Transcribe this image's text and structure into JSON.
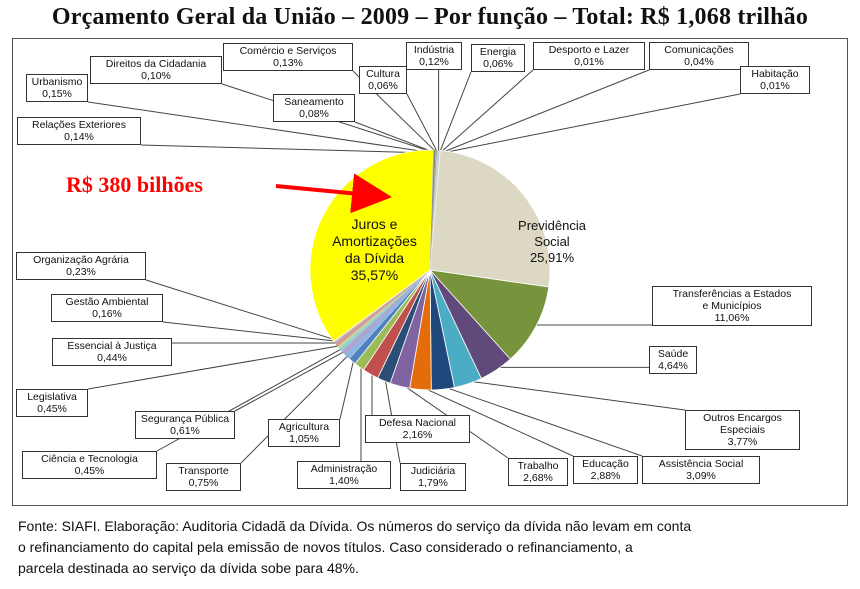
{
  "chart_data": {
    "type": "pie",
    "title": "Orçamento Geral da União – 2009 – Por função – Total: R$ 1,068 trilhão",
    "slices": [
      {
        "label": "Previdência Social",
        "label_lines": [
          "Previdência",
          "Social"
        ],
        "value_text": "25,91%",
        "value": 25.91,
        "color": "#ddd8c4"
      },
      {
        "label": "Transferências a Estados e Municípios",
        "label_lines": [
          "Transferências a Estados",
          "e Municípios"
        ],
        "value_text": "11,06%",
        "value": 11.06,
        "color": "#77933c"
      },
      {
        "label": "Saúde",
        "label_lines": [
          "Saúde"
        ],
        "value_text": "4,64%",
        "value": 4.64,
        "color": "#604a7b"
      },
      {
        "label": "Outros Encargos Especiais",
        "label_lines": [
          "Outros Encargos",
          "Especiais"
        ],
        "value_text": "3,77%",
        "value": 3.77,
        "color": "#4bacc6"
      },
      {
        "label": "Assistência Social",
        "label_lines": [
          "Assistência Social"
        ],
        "value_text": "3,09%",
        "value": 3.09,
        "color": "#1f497d"
      },
      {
        "label": "Educação",
        "label_lines": [
          "Educação"
        ],
        "value_text": "2,88%",
        "value": 2.88,
        "color": "#e46c0a"
      },
      {
        "label": "Trabalho",
        "label_lines": [
          "Trabalho"
        ],
        "value_text": "2,68%",
        "value": 2.68,
        "color": "#8064a2"
      },
      {
        "label": "Judiciária",
        "label_lines": [
          "Judiciária"
        ],
        "value_text": "1,79%",
        "value": 1.79,
        "color": "#2c4d75"
      },
      {
        "label": "Defesa Nacional",
        "label_lines": [
          "Defesa Nacional"
        ],
        "value_text": "2,16%",
        "value": 2.16,
        "color": "#c0504d"
      },
      {
        "label": "Administração",
        "label_lines": [
          "Administração"
        ],
        "value_text": "1,40%",
        "value": 1.4,
        "color": "#9bbb59"
      },
      {
        "label": "Agricultura",
        "label_lines": [
          "Agricultura"
        ],
        "value_text": "1,05%",
        "value": 1.05,
        "color": "#4f81bd"
      },
      {
        "label": "Transporte",
        "label_lines": [
          "Transporte"
        ],
        "value_text": "0,75%",
        "value": 0.75,
        "color": "#8eb4e3"
      },
      {
        "label": "Segurança Pública",
        "label_lines": [
          "Segurança Pública"
        ],
        "value_text": "0,61%",
        "value": 0.61,
        "color": "#b3a2c7"
      },
      {
        "label": "Ciência e Tecnologia",
        "label_lines": [
          "Ciência e Tecnologia"
        ],
        "value_text": "0,45%",
        "value": 0.45,
        "color": "#93cddd"
      },
      {
        "label": "Legislativa",
        "label_lines": [
          "Legislativa"
        ],
        "value_text": "0,45%",
        "value": 0.45,
        "color": "#c3d69b"
      },
      {
        "label": "Essencial à Justiça",
        "label_lines": [
          "Essencial à Justiça"
        ],
        "value_text": "0,44%",
        "value": 0.44,
        "color": "#d99694"
      },
      {
        "label": "Gestão Ambiental",
        "label_lines": [
          "Gestão Ambiental"
        ],
        "value_text": "0,16%",
        "value": 0.16,
        "color": "#95b3d7"
      },
      {
        "label": "Organização Agrária",
        "label_lines": [
          "Organização Agrária"
        ],
        "value_text": "0,23%",
        "value": 0.23,
        "color": "#fac090"
      },
      {
        "label": "Juros e Amortizações da Dívida",
        "label_lines": [
          "Juros e",
          "Amortizações",
          "da Dívida"
        ],
        "value_text": "35,57%",
        "value": 35.57,
        "color": "#ffff00"
      },
      {
        "label": "Relações Exteriores",
        "label_lines": [
          "Relações Exteriores"
        ],
        "value_text": "0,14%",
        "value": 0.14,
        "color": "#a6a6a6"
      },
      {
        "label": "Urbanismo",
        "label_lines": [
          "Urbanismo"
        ],
        "value_text": "0,15%",
        "value": 0.15,
        "color": "#7f7f7f"
      },
      {
        "label": "Direitos da Cidadania",
        "label_lines": [
          "Direitos da Cidadania"
        ],
        "value_text": "0,10%",
        "value": 0.1,
        "color": "#bfbfbf"
      },
      {
        "label": "Saneamento",
        "label_lines": [
          "Saneamento"
        ],
        "value_text": "0,08%",
        "value": 0.08,
        "color": "#948a54"
      },
      {
        "label": "Comércio e Serviços",
        "label_lines": [
          "Comércio e Serviços"
        ],
        "value_text": "0,13%",
        "value": 0.13,
        "color": "#d9d9d9"
      },
      {
        "label": "Cultura",
        "label_lines": [
          "Cultura"
        ],
        "value_text": "0,06%",
        "value": 0.06,
        "color": "#c4bd97"
      },
      {
        "label": "Indústria",
        "label_lines": [
          "Indústria"
        ],
        "value_text": "0,12%",
        "value": 0.12,
        "color": "#b7dee8"
      },
      {
        "label": "Energia",
        "label_lines": [
          "Energia"
        ],
        "value_text": "0,06%",
        "value": 0.06,
        "color": "#ccc1da"
      },
      {
        "label": "Desporto e Lazer",
        "label_lines": [
          "Desporto e Lazer"
        ],
        "value_text": "0,01%",
        "value": 0.01,
        "color": "#f2dcdb"
      },
      {
        "label": "Comunicações",
        "label_lines": [
          "Comunicações"
        ],
        "value_text": "0,04%",
        "value": 0.04,
        "color": "#dbe5f1"
      },
      {
        "label": "Habitação",
        "label_lines": [
          "Habitação"
        ],
        "value_text": "0,01%",
        "value": 0.01,
        "color": "#ebf1de"
      }
    ],
    "annotation": "R$ 380 bilhões",
    "annotation_color": "#ff0000",
    "source_note": [
      "Fonte: SIAFI.  Elaboração: Auditoria Cidadã da Dívida. Os números do serviço da dívida não levam em conta",
      "o  refinanciamento do capital pela emissão de novos títulos. Caso  considerado o refinanciamento,  a",
      "parcela destinada  ao serviço da dívida sobe para 48%."
    ]
  }
}
